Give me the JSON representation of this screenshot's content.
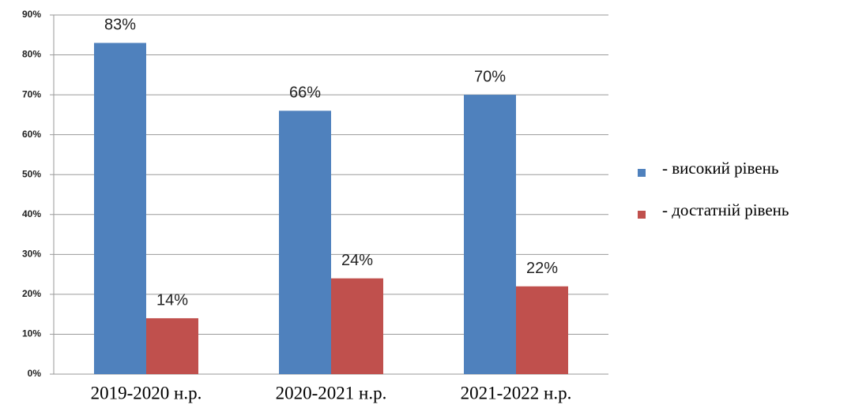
{
  "chart_data": {
    "type": "bar",
    "categories": [
      "2019-2020 н.р.",
      "2020-2021 н.р.",
      "2021-2022 н.р."
    ],
    "series": [
      {
        "name": "- високий рівень",
        "color": "#4f81bd",
        "values": [
          83,
          66,
          70
        ],
        "value_labels": [
          "83%",
          "66%",
          "70%"
        ]
      },
      {
        "name": "- достатній рівень",
        "color": "#c0504d",
        "values": [
          14,
          24,
          22
        ],
        "value_labels": [
          "14%",
          "24%",
          "22%"
        ]
      }
    ],
    "ylim": [
      0,
      90
    ],
    "yticks": [
      {
        "value": 0,
        "label": "0%"
      },
      {
        "value": 10,
        "label": "10%"
      },
      {
        "value": 20,
        "label": "20%"
      },
      {
        "value": 30,
        "label": "30%"
      },
      {
        "value": 40,
        "label": "40%"
      },
      {
        "value": 50,
        "label": "50%"
      },
      {
        "value": 60,
        "label": "60%"
      },
      {
        "value": 70,
        "label": "70%"
      },
      {
        "value": 80,
        "label": "80%"
      },
      {
        "value": 90,
        "label": "90%"
      }
    ],
    "grid": true,
    "legend": "right"
  }
}
